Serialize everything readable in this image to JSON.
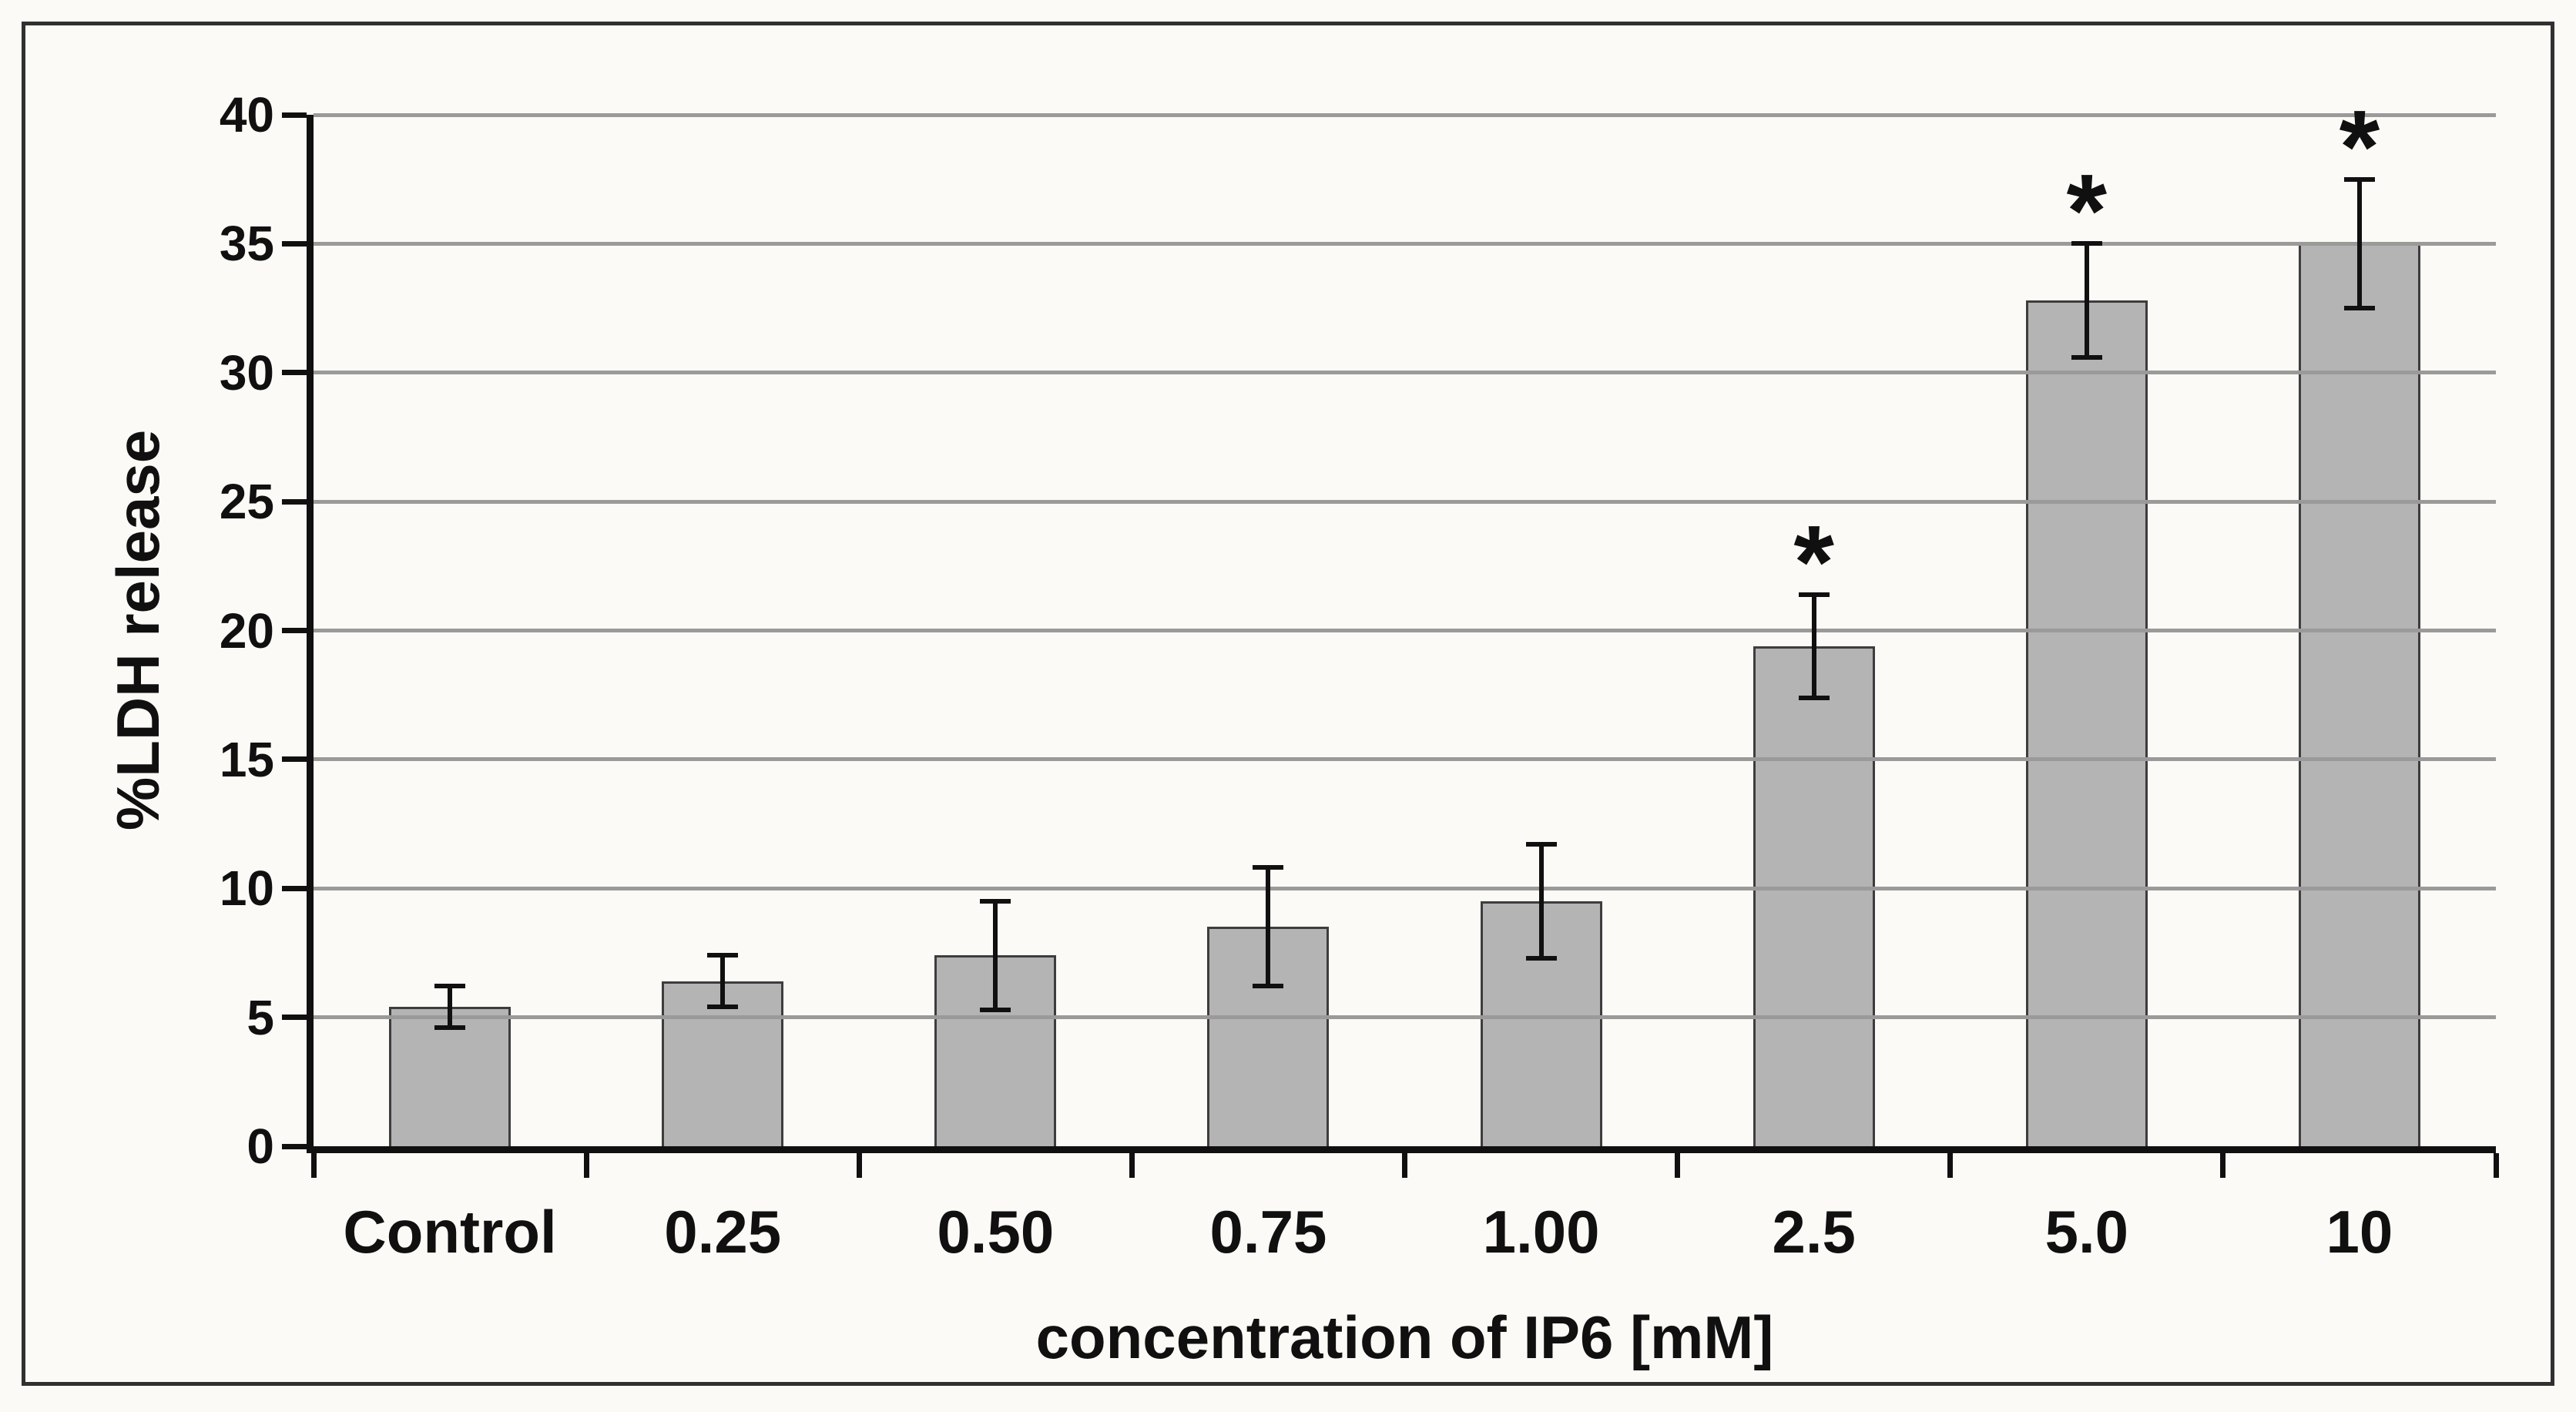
{
  "figure": {
    "background_color": "#fbfaf6",
    "frame_color": "#303030"
  },
  "chart_data": {
    "type": "bar",
    "title": "",
    "categories": [
      "Control",
      "0.25",
      "0.50",
      "0.75",
      "1.00",
      "2.5",
      "5.0",
      "10"
    ],
    "values": [
      5.4,
      6.4,
      7.4,
      8.5,
      9.5,
      19.4,
      32.8,
      35.0
    ],
    "error_bars": [
      0.8,
      1.0,
      2.1,
      2.3,
      2.2,
      2.0,
      2.2,
      2.5
    ],
    "significance": [
      false,
      false,
      false,
      false,
      false,
      true,
      true,
      true
    ],
    "significance_marker": "*",
    "xlabel": "concentration of IP6 [mM]",
    "ylabel": "%LDH release",
    "ylim": [
      0,
      40
    ],
    "yticks": [
      0,
      5,
      10,
      15,
      20,
      25,
      30,
      35,
      40
    ],
    "grid": "horizontal-only",
    "legend": "none",
    "bar_color": "#b4b4b4",
    "bar_border_color": "#3d3d3d",
    "gridline_color": "#9a9a9a",
    "axis_color": "#101010",
    "error_bar_color": "#101010",
    "text_color": "#101010"
  }
}
